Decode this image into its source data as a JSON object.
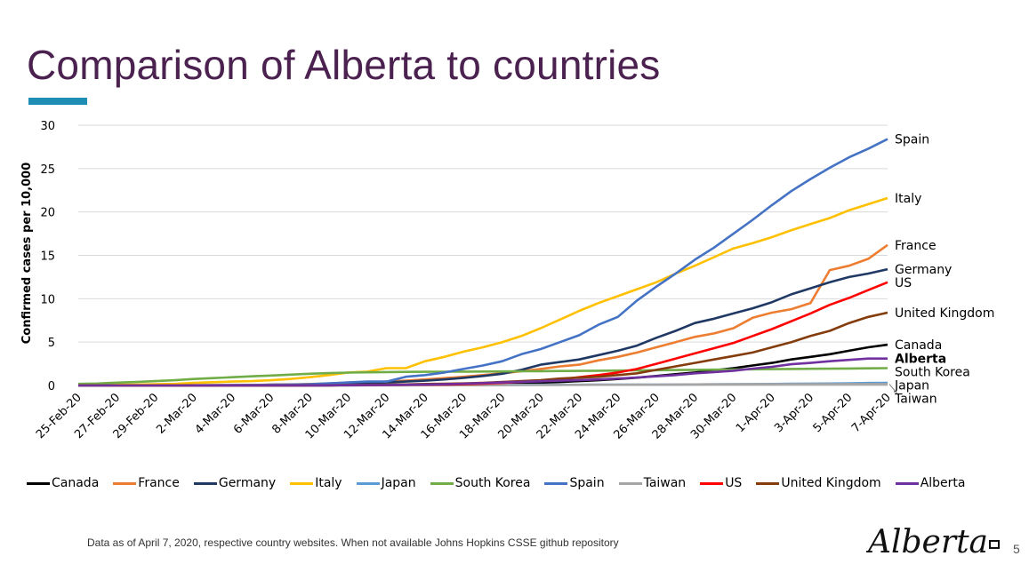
{
  "slide": {
    "title": "Comparison of Alberta to countries",
    "accent_color": "#1f8db4",
    "title_color": "#4b2150",
    "footnote": "Data as of April 7, 2020, respective country websites. When not available Johns Hopkins CSSE  github repository",
    "logo_text": "Alberta",
    "page_number": "5"
  },
  "chart_data": {
    "type": "line",
    "ylabel": "Confirmed cases per 10,000",
    "xlabel": "",
    "ylim": [
      0,
      30
    ],
    "yticks": [
      0,
      5,
      10,
      15,
      20,
      25,
      30
    ],
    "grid": "horizontal",
    "legend_position": "bottom",
    "x": [
      "25-Feb-20",
      "26-Feb-20",
      "27-Feb-20",
      "28-Feb-20",
      "29-Feb-20",
      "1-Mar-20",
      "2-Mar-20",
      "3-Mar-20",
      "4-Mar-20",
      "5-Mar-20",
      "6-Mar-20",
      "7-Mar-20",
      "8-Mar-20",
      "9-Mar-20",
      "10-Mar-20",
      "11-Mar-20",
      "12-Mar-20",
      "13-Mar-20",
      "14-Mar-20",
      "15-Mar-20",
      "16-Mar-20",
      "17-Mar-20",
      "18-Mar-20",
      "19-Mar-20",
      "20-Mar-20",
      "21-Mar-20",
      "22-Mar-20",
      "23-Mar-20",
      "24-Mar-20",
      "25-Mar-20",
      "26-Mar-20",
      "27-Mar-20",
      "28-Mar-20",
      "29-Mar-20",
      "30-Mar-20",
      "31-Mar-20",
      "1-Apr-20",
      "2-Apr-20",
      "3-Apr-20",
      "4-Apr-20",
      "5-Apr-20",
      "6-Apr-20",
      "7-Apr-20"
    ],
    "x_tick_labels": [
      "25-Feb-20",
      "27-Feb-20",
      "29-Feb-20",
      "2-Mar-20",
      "4-Mar-20",
      "6-Mar-20",
      "8-Mar-20",
      "10-Mar-20",
      "12-Mar-20",
      "14-Mar-20",
      "16-Mar-20",
      "18-Mar-20",
      "20-Mar-20",
      "22-Mar-20",
      "24-Mar-20",
      "26-Mar-20",
      "28-Mar-20",
      "30-Mar-20",
      "1-Apr-20",
      "3-Apr-20",
      "5-Apr-20",
      "7-Apr-20"
    ],
    "series": [
      {
        "name": "Canada",
        "color": "#000000",
        "end_label": "Canada",
        "values": [
          0,
          0,
          0,
          0,
          0,
          0,
          0,
          0,
          0,
          0,
          0,
          0,
          0.01,
          0.01,
          0.02,
          0.03,
          0.04,
          0.06,
          0.08,
          0.1,
          0.12,
          0.16,
          0.2,
          0.26,
          0.33,
          0.4,
          0.5,
          0.6,
          0.75,
          0.9,
          1.1,
          1.3,
          1.5,
          1.75,
          2.0,
          2.3,
          2.6,
          3.0,
          3.3,
          3.6,
          4.0,
          4.4,
          4.7
        ]
      },
      {
        "name": "France",
        "color": "#ed7d31",
        "end_label": "France",
        "values": [
          0,
          0,
          0,
          0,
          0.01,
          0.01,
          0.02,
          0.03,
          0.04,
          0.06,
          0.09,
          0.11,
          0.17,
          0.21,
          0.27,
          0.35,
          0.45,
          0.55,
          0.7,
          0.85,
          1.0,
          1.2,
          1.4,
          1.65,
          1.9,
          2.2,
          2.4,
          2.9,
          3.3,
          3.8,
          4.4,
          5.0,
          5.6,
          6.0,
          6.6,
          7.8,
          8.4,
          8.8,
          9.5,
          13.3,
          13.8,
          14.6,
          16.2
        ]
      },
      {
        "name": "Germany",
        "color": "#1f3864",
        "end_label": "Germany",
        "values": [
          0,
          0,
          0,
          0,
          0.01,
          0.01,
          0.02,
          0.02,
          0.03,
          0.05,
          0.08,
          0.1,
          0.12,
          0.15,
          0.2,
          0.28,
          0.35,
          0.45,
          0.55,
          0.7,
          0.88,
          1.1,
          1.35,
          1.8,
          2.4,
          2.7,
          3.0,
          3.5,
          4.0,
          4.6,
          5.5,
          6.3,
          7.2,
          7.7,
          8.3,
          8.9,
          9.6,
          10.5,
          11.2,
          11.9,
          12.5,
          12.9,
          13.4
        ]
      },
      {
        "name": "Italy",
        "color": "#ffc000",
        "end_label": "Italy",
        "values": [
          0.05,
          0.07,
          0.1,
          0.1,
          0.15,
          0.18,
          0.3,
          0.38,
          0.45,
          0.5,
          0.6,
          0.75,
          0.95,
          1.2,
          1.5,
          1.6,
          2.0,
          2.0,
          2.8,
          3.3,
          3.9,
          4.4,
          5.0,
          5.7,
          6.6,
          7.6,
          8.6,
          9.5,
          10.3,
          11.1,
          11.9,
          12.9,
          13.8,
          14.8,
          15.8,
          16.4,
          17.1,
          17.9,
          18.6,
          19.3,
          20.2,
          20.9,
          21.6
        ]
      },
      {
        "name": "Japan",
        "color": "#5b9bd5",
        "end_label": "Japan",
        "values": [
          0.01,
          0.01,
          0.01,
          0.02,
          0.02,
          0.02,
          0.02,
          0.02,
          0.02,
          0.03,
          0.03,
          0.03,
          0.03,
          0.04,
          0.04,
          0.05,
          0.05,
          0.05,
          0.06,
          0.06,
          0.06,
          0.07,
          0.07,
          0.07,
          0.08,
          0.08,
          0.08,
          0.09,
          0.09,
          0.1,
          0.1,
          0.11,
          0.12,
          0.13,
          0.14,
          0.16,
          0.17,
          0.19,
          0.21,
          0.23,
          0.26,
          0.29,
          0.31
        ]
      },
      {
        "name": "South Korea",
        "color": "#70ad47",
        "end_label": "South Korea",
        "values": [
          0.18,
          0.23,
          0.33,
          0.4,
          0.5,
          0.6,
          0.75,
          0.85,
          0.95,
          1.05,
          1.15,
          1.25,
          1.35,
          1.42,
          1.48,
          1.52,
          1.55,
          1.57,
          1.58,
          1.59,
          1.6,
          1.61,
          1.62,
          1.64,
          1.65,
          1.67,
          1.68,
          1.7,
          1.72,
          1.74,
          1.76,
          1.78,
          1.8,
          1.82,
          1.84,
          1.86,
          1.88,
          1.9,
          1.92,
          1.94,
          1.96,
          1.98,
          2.0
        ]
      },
      {
        "name": "Spain",
        "color": "#4472c4",
        "end_label": "Spain",
        "values": [
          0,
          0,
          0,
          0,
          0,
          0.02,
          0.03,
          0.04,
          0.05,
          0.06,
          0.08,
          0.1,
          0.14,
          0.25,
          0.35,
          0.45,
          0.45,
          1.0,
          1.2,
          1.5,
          1.9,
          2.3,
          2.8,
          3.6,
          4.2,
          5.0,
          5.8,
          7.0,
          7.9,
          9.8,
          11.4,
          12.9,
          14.5,
          15.9,
          17.5,
          19.1,
          20.8,
          22.4,
          23.8,
          25.1,
          26.3,
          27.3,
          28.4
        ]
      },
      {
        "name": "Taiwan",
        "color": "#a5a5a5",
        "end_label": "Taiwan",
        "values": [
          0.01,
          0.01,
          0.01,
          0.01,
          0.02,
          0.02,
          0.02,
          0.02,
          0.02,
          0.02,
          0.02,
          0.02,
          0.02,
          0.02,
          0.02,
          0.02,
          0.02,
          0.02,
          0.03,
          0.03,
          0.03,
          0.03,
          0.04,
          0.05,
          0.05,
          0.06,
          0.07,
          0.08,
          0.08,
          0.09,
          0.1,
          0.11,
          0.12,
          0.13,
          0.13,
          0.14,
          0.14,
          0.15,
          0.15,
          0.15,
          0.16,
          0.16,
          0.16
        ]
      },
      {
        "name": "US",
        "color": "#ff0000",
        "end_label": "US",
        "values": [
          0,
          0,
          0,
          0,
          0,
          0,
          0,
          0,
          0,
          0,
          0.01,
          0.01,
          0.02,
          0.02,
          0.03,
          0.04,
          0.05,
          0.07,
          0.09,
          0.11,
          0.14,
          0.2,
          0.3,
          0.42,
          0.57,
          0.7,
          0.95,
          1.2,
          1.5,
          1.9,
          2.5,
          3.1,
          3.7,
          4.3,
          4.9,
          5.7,
          6.5,
          7.4,
          8.3,
          9.3,
          10.1,
          11.0,
          11.9
        ]
      },
      {
        "name": "United Kingdom",
        "color": "#843c0c",
        "end_label": "United Kingdom",
        "values": [
          0,
          0,
          0,
          0,
          0,
          0,
          0,
          0,
          0,
          0,
          0.01,
          0.01,
          0.02,
          0.03,
          0.05,
          0.07,
          0.09,
          0.12,
          0.17,
          0.2,
          0.24,
          0.3,
          0.4,
          0.5,
          0.6,
          0.8,
          0.9,
          1.0,
          1.2,
          1.4,
          1.8,
          2.2,
          2.6,
          3.0,
          3.4,
          3.8,
          4.4,
          5.0,
          5.7,
          6.3,
          7.2,
          7.9,
          8.4
        ]
      },
      {
        "name": "Alberta",
        "color": "#7030a0",
        "end_label": "Alberta",
        "end_label_bold": true,
        "values": [
          0,
          0,
          0,
          0,
          0,
          0,
          0,
          0,
          0,
          0,
          0,
          0,
          0.01,
          0.02,
          0.03,
          0.05,
          0.05,
          0.08,
          0.11,
          0.14,
          0.2,
          0.28,
          0.35,
          0.42,
          0.48,
          0.55,
          0.62,
          0.7,
          0.8,
          0.92,
          1.05,
          1.2,
          1.4,
          1.55,
          1.7,
          1.95,
          2.15,
          2.45,
          2.6,
          2.8,
          2.95,
          3.1,
          3.1
        ]
      }
    ]
  }
}
